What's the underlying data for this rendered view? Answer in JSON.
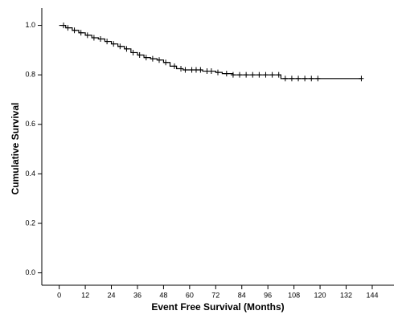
{
  "chart_data": {
    "type": "survival",
    "x_label": "Event Free Survival (Months)",
    "y_label": "Cumulative Survival",
    "xlim": [
      -8,
      154
    ],
    "ylim": [
      -0.05,
      1.07
    ],
    "xticks": [
      0,
      12,
      24,
      36,
      48,
      60,
      72,
      84,
      96,
      108,
      120,
      132,
      144
    ],
    "yticks": [
      {
        "value": 0,
        "label": "0.0"
      },
      0.2,
      0.4,
      0.6,
      0.8,
      {
        "value": 1,
        "label": "1.0"
      }
    ],
    "color": "#000000",
    "x": [
      0,
      3,
      6,
      9,
      12,
      15,
      18,
      21,
      24,
      27,
      30,
      33,
      36,
      39,
      42,
      45,
      48,
      51,
      54,
      57,
      60,
      66,
      72,
      75,
      80,
      90,
      100,
      102,
      139
    ],
    "values": [
      1.0,
      0.99,
      0.98,
      0.97,
      0.96,
      0.95,
      0.945,
      0.935,
      0.925,
      0.915,
      0.905,
      0.89,
      0.88,
      0.87,
      0.865,
      0.86,
      0.85,
      0.835,
      0.825,
      0.82,
      0.82,
      0.815,
      0.81,
      0.805,
      0.8,
      0.8,
      0.8,
      0.785,
      0.785
    ],
    "censored": {
      "x": [
        2,
        4,
        7,
        10,
        13,
        16,
        19,
        22,
        25,
        28,
        31,
        34,
        37,
        40,
        43,
        46,
        49,
        53,
        56,
        58,
        61,
        63,
        65,
        68,
        70,
        73,
        77,
        80,
        83,
        86,
        89,
        92,
        95,
        98,
        101,
        104,
        107,
        110,
        113,
        116,
        119,
        139
      ],
      "values": [
        1.0,
        0.99,
        0.98,
        0.97,
        0.96,
        0.95,
        0.945,
        0.935,
        0.925,
        0.915,
        0.905,
        0.89,
        0.88,
        0.87,
        0.865,
        0.86,
        0.85,
        0.835,
        0.825,
        0.82,
        0.82,
        0.82,
        0.82,
        0.815,
        0.815,
        0.81,
        0.805,
        0.8,
        0.8,
        0.8,
        0.8,
        0.8,
        0.8,
        0.8,
        0.8,
        0.785,
        0.785,
        0.785,
        0.785,
        0.785,
        0.785,
        0.785
      ]
    }
  }
}
